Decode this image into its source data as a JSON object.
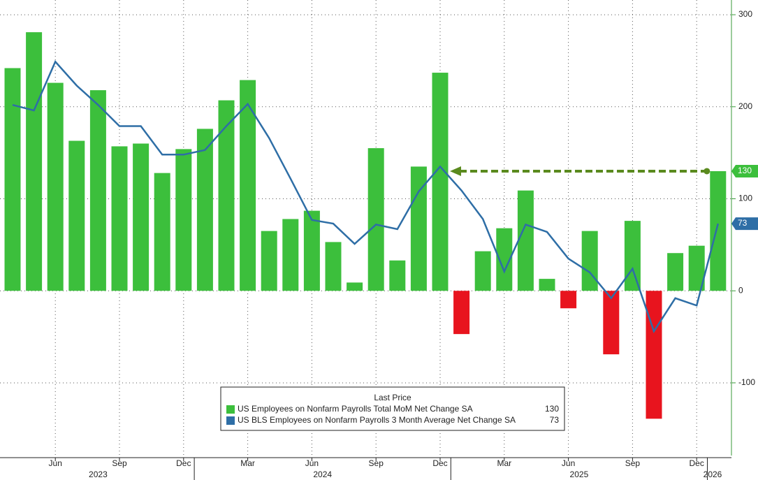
{
  "chart_data": {
    "type": "bar",
    "categories": [
      null,
      null,
      "Jun",
      null,
      null,
      "Sep",
      null,
      null,
      "Dec",
      null,
      null,
      "Mar",
      null,
      null,
      "Jun",
      null,
      null,
      "Sep",
      null,
      null,
      "Dec",
      null,
      null,
      "Mar",
      null,
      null,
      "Jun",
      null,
      null,
      "Sep",
      null,
      null,
      "Dec",
      null
    ],
    "year_labels": [
      "2023",
      "2024",
      "2025",
      "2026"
    ],
    "series": [
      {
        "name": "US Employees on Nonfarm Payrolls Total MoM Net Change SA",
        "type": "bar",
        "color": "#3cbf3c",
        "negative_color": "#e8141e",
        "values": [
          242,
          281,
          226,
          163,
          218,
          157,
          160,
          128,
          154,
          176,
          207,
          229,
          65,
          78,
          87,
          53,
          9,
          155,
          33,
          135,
          237,
          -47,
          43,
          68,
          109,
          13,
          -19,
          65,
          -69,
          76,
          -139,
          41,
          49,
          130
        ]
      },
      {
        "name": "US BLS Employees on Nonfarm Payrolls 3 Month Average Net Change SA",
        "type": "line",
        "color": "#2e6ea6",
        "values": [
          202,
          196,
          249,
          223,
          202,
          179,
          179,
          148,
          148,
          153,
          179,
          203,
          166,
          122,
          77,
          73,
          51,
          72,
          67,
          108,
          135,
          109,
          78,
          21,
          72,
          64,
          35,
          20,
          -8,
          24,
          -44,
          -8,
          -16,
          73
        ]
      }
    ],
    "legend_title": "Last Price",
    "annotation_color": "#5a8a1e",
    "ylim": [
      -179,
      316
    ],
    "yticks": [
      -100,
      0,
      100,
      200,
      300
    ],
    "grid": true
  }
}
